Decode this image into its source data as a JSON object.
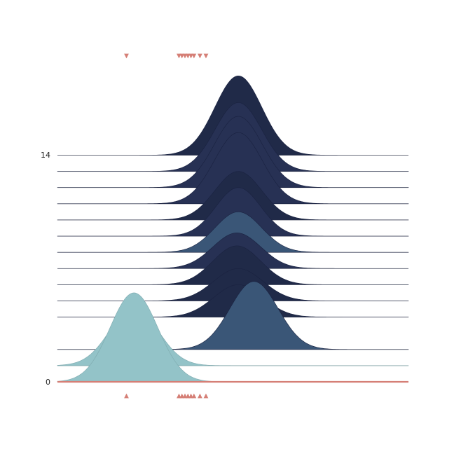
{
  "chart_data": {
    "type": "ridgeline",
    "title": "",
    "xlabel": "",
    "ylabel": "",
    "x_range": [
      -4.5,
      7.2
    ],
    "ylim": [
      0,
      14
    ],
    "y_ticks": [
      {
        "value": 0,
        "label": "0"
      },
      {
        "value": 14,
        "label": "14"
      }
    ],
    "grid": false,
    "series": [
      {
        "baseline": 14,
        "mean": 1.53,
        "sd": 0.78,
        "peak": 4.9
      },
      {
        "baseline": 13,
        "mean": 1.53,
        "sd": 0.78,
        "peak": 4.25
      },
      {
        "baseline": 12,
        "mean": 1.53,
        "sd": 0.8,
        "peak": 4.4
      },
      {
        "baseline": 11,
        "mean": 1.53,
        "sd": 0.8,
        "peak": 4.4
      },
      {
        "baseline": 10,
        "mean": 1.53,
        "sd": 0.78,
        "peak": 3.0
      },
      {
        "baseline": 9,
        "mean": 1.53,
        "sd": 0.75,
        "peak": 3.0
      },
      {
        "baseline": 8,
        "mean": 1.53,
        "sd": 0.78,
        "peak": 2.5
      },
      {
        "baseline": 7,
        "mean": 1.48,
        "sd": 0.8,
        "peak": 2.2
      },
      {
        "baseline": 6,
        "mean": 1.48,
        "sd": 0.8,
        "peak": 2.4
      },
      {
        "baseline": 5,
        "mean": 1.53,
        "sd": 0.82,
        "peak": 2.0
      },
      {
        "baseline": 4,
        "mean": 1.53,
        "sd": 0.82,
        "peak": 2.0
      },
      {
        "baseline": 2,
        "mean": 2.05,
        "sd": 0.8,
        "peak": 4.2
      },
      {
        "baseline": 1,
        "mean": -1.95,
        "sd": 0.8,
        "peak": 3.6
      },
      {
        "baseline": 0,
        "mean": -1.95,
        "sd": 0.8,
        "peak": 5.5
      }
    ],
    "rug_x": [
      -2.2,
      -0.45,
      -0.35,
      -0.25,
      -0.15,
      -0.05,
      0.05,
      0.25,
      0.45
    ]
  },
  "colors": {
    "dark_navy": "#202a48",
    "mid_navy": "#273154",
    "slate_blue": "#3a5677",
    "teal": "#93c3c8",
    "baseline": "#bbbbbb",
    "zero_line": "#d57f76",
    "rug_marker": "#d57f76"
  }
}
